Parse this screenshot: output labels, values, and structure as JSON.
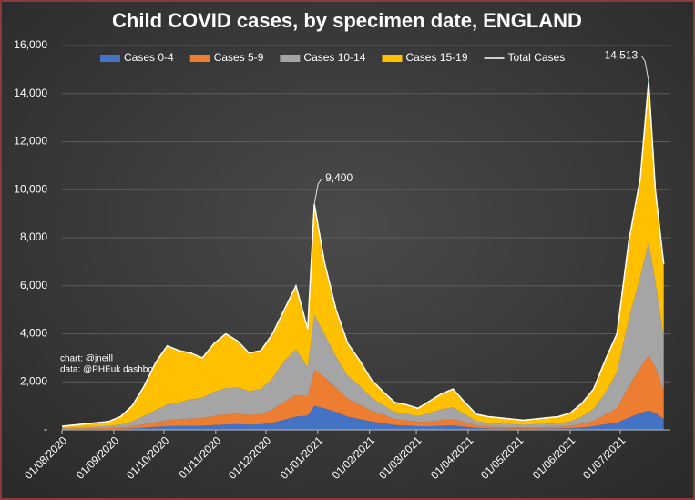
{
  "chart_data": {
    "type": "stacked-area",
    "title": "Child COVID cases, by specimen date, ENGLAND",
    "x": [
      "01/08/2020",
      "08/08/2020",
      "15/08/2020",
      "22/08/2020",
      "29/08/2020",
      "05/09/2020",
      "12/09/2020",
      "19/09/2020",
      "26/09/2020",
      "03/10/2020",
      "10/10/2020",
      "17/10/2020",
      "24/10/2020",
      "31/10/2020",
      "07/11/2020",
      "14/11/2020",
      "21/11/2020",
      "28/11/2020",
      "05/12/2020",
      "12/12/2020",
      "19/12/2020",
      "26/12/2020",
      "30/12/2020",
      "05/01/2021",
      "12/01/2021",
      "19/01/2021",
      "26/01/2021",
      "02/02/2021",
      "09/02/2021",
      "16/02/2021",
      "23/02/2021",
      "02/03/2021",
      "09/03/2021",
      "16/03/2021",
      "23/03/2021",
      "30/03/2021",
      "06/04/2021",
      "13/04/2021",
      "20/04/2021",
      "27/04/2021",
      "04/05/2021",
      "11/05/2021",
      "18/05/2021",
      "25/05/2021",
      "01/06/2021",
      "08/06/2021",
      "15/06/2021",
      "22/06/2021",
      "29/06/2021",
      "06/07/2021",
      "13/07/2021",
      "18/07/2021",
      "22/07/2021",
      "27/07/2021"
    ],
    "series": [
      {
        "name": "Cases 0-4",
        "color": "#4472c4",
        "values": [
          20,
          25,
          25,
          30,
          35,
          40,
          60,
          90,
          120,
          150,
          160,
          170,
          170,
          200,
          220,
          230,
          220,
          230,
          300,
          420,
          550,
          600,
          1000,
          900,
          750,
          550,
          450,
          350,
          280,
          200,
          180,
          150,
          150,
          170,
          180,
          130,
          80,
          60,
          55,
          50,
          45,
          50,
          55,
          60,
          70,
          100,
          150,
          230,
          300,
          500,
          700,
          800,
          700,
          450
        ]
      },
      {
        "name": "Cases 5-9",
        "color": "#ed7d31",
        "values": [
          25,
          30,
          35,
          40,
          45,
          60,
          90,
          140,
          200,
          250,
          280,
          300,
          320,
          380,
          420,
          430,
          400,
          420,
          550,
          750,
          900,
          800,
          1500,
          1300,
          1000,
          750,
          600,
          450,
          350,
          250,
          220,
          180,
          200,
          240,
          260,
          190,
          100,
          80,
          70,
          60,
          55,
          60,
          65,
          70,
          90,
          150,
          220,
          400,
          600,
          1300,
          1900,
          2300,
          1900,
          1200
        ]
      },
      {
        "name": "Cases 10-14",
        "color": "#a5a5a5",
        "values": [
          40,
          50,
          60,
          70,
          80,
          120,
          200,
          350,
          500,
          650,
          700,
          800,
          850,
          1000,
          1100,
          1100,
          1000,
          1050,
          1300,
          1700,
          1900,
          1200,
          2300,
          1800,
          1300,
          950,
          800,
          550,
          400,
          300,
          280,
          240,
          350,
          450,
          500,
          330,
          180,
          150,
          130,
          120,
          110,
          120,
          130,
          140,
          180,
          300,
          500,
          900,
          1500,
          2800,
          3800,
          4700,
          3600,
          2200
        ]
      },
      {
        "name": "Cases 15-19",
        "color": "#ffc000",
        "values": [
          65,
          95,
          130,
          160,
          190,
          330,
          650,
          1220,
          1980,
          2450,
          2160,
          1930,
          1660,
          2020,
          2260,
          1940,
          1580,
          1600,
          1850,
          2130,
          2650,
          1600,
          4600,
          3000,
          1950,
          1350,
          1050,
          750,
          570,
          400,
          370,
          330,
          500,
          640,
          760,
          500,
          290,
          260,
          245,
          220,
          190,
          220,
          250,
          280,
          360,
          550,
          830,
          1370,
          1600,
          3200,
          4100,
          6713,
          3800,
          3050
        ]
      },
      {
        "name": "Total Cases",
        "color": "#ffffff",
        "line": true,
        "values": [
          150,
          200,
          250,
          300,
          350,
          550,
          1000,
          1800,
          2800,
          3500,
          3300,
          3200,
          3000,
          3600,
          4000,
          3700,
          3200,
          3300,
          4000,
          5000,
          6000,
          4200,
          9400,
          7000,
          5000,
          3600,
          2900,
          2100,
          1600,
          1150,
          1050,
          900,
          1200,
          1500,
          1700,
          1150,
          650,
          550,
          500,
          450,
          400,
          450,
          500,
          550,
          700,
          1100,
          1700,
          2900,
          4000,
          7800,
          10500,
          14513,
          10000,
          6900
        ]
      }
    ],
    "xlim": [
      "01/08/2020",
      "31/07/2021"
    ],
    "xticks": [
      "01/08/2020",
      "01/09/2020",
      "01/10/2020",
      "01/11/2020",
      "01/12/2020",
      "01/01/2021",
      "01/02/2021",
      "01/03/2021",
      "01/04/2021",
      "01/05/2021",
      "01/06/2021",
      "01/07/2021"
    ],
    "ylim": [
      0,
      16000
    ],
    "yticks": [
      {
        "value": 0,
        "label": "-"
      },
      {
        "value": 2000,
        "label": "2,000"
      },
      {
        "value": 4000,
        "label": "4,000"
      },
      {
        "value": 6000,
        "label": "6,000"
      },
      {
        "value": 8000,
        "label": "8,000"
      },
      {
        "value": 10000,
        "label": "10,000"
      },
      {
        "value": 12000,
        "label": "12,000"
      },
      {
        "value": 14000,
        "label": "14,000"
      },
      {
        "value": 16000,
        "label": "16,000"
      }
    ],
    "grid": true,
    "legend": "top",
    "annotations": [
      {
        "text": "9,400",
        "x": "30/12/2020",
        "y": 9400
      },
      {
        "text": "14,513",
        "x": "18/07/2021",
        "y": 14513
      }
    ],
    "notes": [
      "chart: @jneill",
      "data: @PHEuk dashboard"
    ]
  }
}
